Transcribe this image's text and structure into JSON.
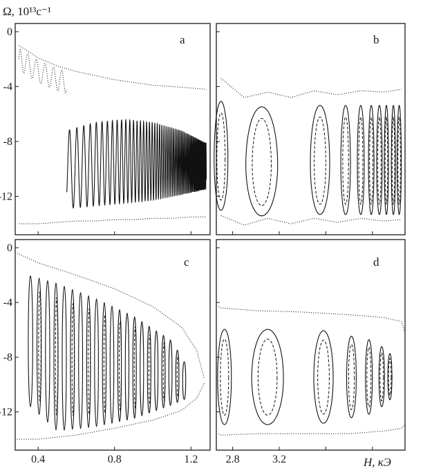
{
  "figure": {
    "y_axis_label": "Ω, 10¹³c⁻¹",
    "x_axis_label": "H, кЭ"
  },
  "chart_data": [
    {
      "panel": "a",
      "type": "line",
      "xlim": [
        0.28,
        1.3
      ],
      "ylim": [
        -14.8,
        0.6
      ],
      "yticks": [
        "0",
        "-4",
        "-8",
        "-12"
      ],
      "series": [
        {
          "style": "dotted",
          "role": "upper branch",
          "x": [
            0.3,
            0.4,
            0.5,
            0.6,
            0.7,
            0.8,
            0.9,
            1.0,
            1.1,
            1.2,
            1.28
          ],
          "y": [
            -1.0,
            -1.9,
            -2.5,
            -2.9,
            -3.2,
            -3.5,
            -3.7,
            -3.9,
            -4.0,
            -4.1,
            -4.2
          ]
        },
        {
          "style": "dotted",
          "role": "lower branch",
          "x": [
            0.3,
            0.4,
            0.5,
            0.6,
            0.7,
            0.8,
            0.9,
            1.0,
            1.1,
            1.2,
            1.28
          ],
          "y": [
            -14.0,
            -14.0,
            -13.9,
            -13.8,
            -13.8,
            -13.7,
            -13.7,
            -13.6,
            -13.6,
            -13.5,
            -13.5
          ]
        },
        {
          "style": "solid",
          "role": "oscillation envelope",
          "x": [
            0.55,
            0.7,
            0.85,
            1.0,
            1.15,
            1.28
          ],
          "y_top": [
            -7.2,
            -6.6,
            -6.4,
            -6.6,
            -7.2,
            -8.1
          ],
          "y_bottom": [
            -12.9,
            -12.7,
            -12.5,
            -12.3,
            -11.9,
            -11.5
          ]
        }
      ]
    },
    {
      "panel": "b",
      "type": "line",
      "xlim": [
        2.66,
        4.28
      ],
      "ylim": [
        -14.8,
        0.6
      ],
      "series": [
        {
          "style": "dotted",
          "role": "upper branch",
          "x": [
            2.7,
            2.9,
            3.1,
            3.3,
            3.5,
            3.7,
            3.9,
            4.1,
            4.25
          ],
          "y": [
            -3.4,
            -4.8,
            -4.4,
            -4.8,
            -4.3,
            -4.6,
            -4.3,
            -4.4,
            -4.2
          ]
        },
        {
          "style": "dotted",
          "role": "lower branch",
          "x": [
            2.7,
            2.9,
            3.1,
            3.3,
            3.5,
            3.7,
            3.9,
            4.1,
            4.25
          ],
          "y": [
            -13.4,
            -14.1,
            -13.6,
            -14.0,
            -13.6,
            -13.9,
            -13.6,
            -13.8,
            -13.7
          ]
        },
        {
          "style": "solid",
          "role": "loop centers",
          "x": [
            2.7,
            3.05,
            3.55,
            3.77,
            3.9,
            3.99,
            4.06,
            4.12,
            4.18,
            4.23
          ],
          "y": [
            -9.3,
            -9.7,
            -9.6,
            -9.6,
            -9.6,
            -9.6,
            -9.6,
            -9.6,
            -9.6,
            -9.6
          ]
        }
      ]
    },
    {
      "panel": "c",
      "type": "line",
      "xlim": [
        0.28,
        1.3
      ],
      "ylim": [
        -14.8,
        0.6
      ],
      "yticks": [
        "0",
        "-4",
        "-8",
        "-12"
      ],
      "xticks": [
        "0.4",
        "0.8",
        "1.2"
      ],
      "series": [
        {
          "style": "dotted",
          "role": "upper branch",
          "x": [
            0.29,
            0.4,
            0.6,
            0.8,
            1.0,
            1.15,
            1.23,
            1.27
          ],
          "y": [
            -0.4,
            -1.1,
            -2.0,
            -3.0,
            -4.3,
            -5.8,
            -7.5,
            -9.6
          ]
        },
        {
          "style": "dotted",
          "role": "lower branch",
          "x": [
            0.29,
            0.4,
            0.6,
            0.8,
            1.0,
            1.15,
            1.23,
            1.27
          ],
          "y": [
            -14.0,
            -14.0,
            -13.7,
            -13.2,
            -12.6,
            -11.9,
            -11.0,
            -9.9
          ]
        },
        {
          "style": "solid",
          "role": "loop band",
          "x": [
            0.35,
            0.5,
            0.7,
            0.9,
            1.1,
            1.18
          ],
          "y_top": [
            -2.0,
            -2.6,
            -3.7,
            -5.0,
            -6.8,
            -8.7
          ],
          "y_bottom": [
            -11.5,
            -13.4,
            -13.1,
            -12.5,
            -11.5,
            -11.0
          ]
        }
      ]
    },
    {
      "panel": "d",
      "type": "line",
      "xlim": [
        2.66,
        4.28
      ],
      "ylim": [
        -14.8,
        0.6
      ],
      "xticks": [
        "2.8",
        "3.2"
      ],
      "series": [
        {
          "style": "dotted",
          "role": "upper branch",
          "x": [
            2.68,
            2.7,
            3.0,
            3.4,
            3.8,
            4.1,
            4.25,
            4.28
          ],
          "y": [
            -4.3,
            -4.4,
            -4.6,
            -4.7,
            -4.9,
            -5.1,
            -5.4,
            -6.2
          ]
        },
        {
          "style": "dotted",
          "role": "lower branch",
          "x": [
            2.68,
            2.7,
            3.0,
            3.4,
            3.8,
            4.1,
            4.25,
            4.28
          ],
          "y": [
            -13.6,
            -13.7,
            -13.6,
            -13.6,
            -13.6,
            -13.4,
            -13.2,
            -12.9
          ]
        },
        {
          "style": "solid",
          "role": "loop centers",
          "x": [
            2.73,
            3.1,
            3.58,
            3.82,
            3.97,
            4.08,
            4.15
          ],
          "y": [
            -9.5,
            -9.5,
            -9.5,
            -9.5,
            -9.5,
            -9.5,
            -9.5
          ]
        }
      ]
    }
  ],
  "panels": {
    "a": {
      "letter": "a"
    },
    "b": {
      "letter": "b"
    },
    "c": {
      "letter": "c"
    },
    "d": {
      "letter": "d"
    }
  }
}
